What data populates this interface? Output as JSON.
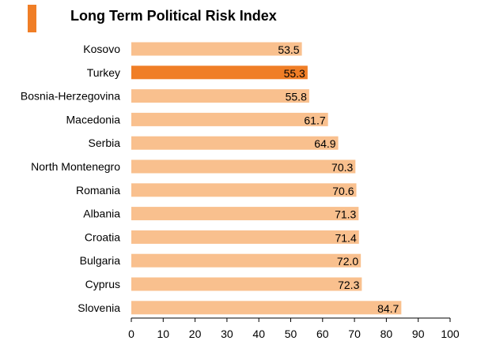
{
  "title": "Long Term Political Risk Index",
  "colors": {
    "accent": "#f07e26",
    "bar": "#f9c08e",
    "highlight": "#f07e26"
  },
  "chart_data": {
    "type": "bar",
    "orientation": "horizontal",
    "title": "Long Term Political Risk Index",
    "xlabel": "",
    "ylabel": "",
    "xlim": [
      0,
      100
    ],
    "xticks": [
      "0",
      "10",
      "20",
      "30",
      "40",
      "50",
      "60",
      "70",
      "80",
      "90",
      "100"
    ],
    "grid": false,
    "categories": [
      "Kosovo",
      "Turkey",
      "Bosnia-Herzegovina",
      "Macedonia",
      "Serbia",
      "North Montenegro",
      "Romania",
      "Albania",
      "Croatia",
      "Bulgaria",
      "Cyprus",
      "Slovenia"
    ],
    "values": [
      53.5,
      55.3,
      55.8,
      61.7,
      64.9,
      70.3,
      70.6,
      71.3,
      71.4,
      72.0,
      72.3,
      84.7
    ],
    "value_labels": [
      "53.5",
      "55.3",
      "55.8",
      "61.7",
      "64.9",
      "70.3",
      "70.6",
      "71.3",
      "71.4",
      "72.0",
      "72.3",
      "84.7"
    ],
    "highlighted": [
      "Turkey"
    ]
  }
}
